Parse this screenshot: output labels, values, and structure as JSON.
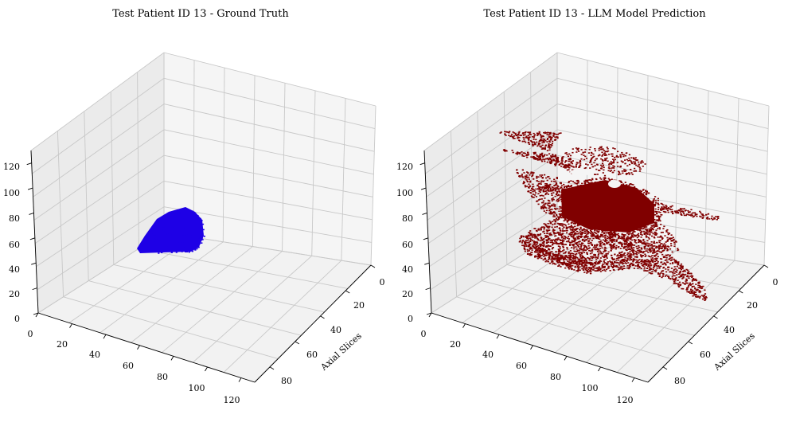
{
  "chart_data": [
    {
      "type": "scatter",
      "subtype": "3d-voxel",
      "title": "Test Patient ID 13 - Ground Truth",
      "xlabel": "",
      "ylabel": "Axial Slices",
      "zlabel": "",
      "x_ticks": [
        "0",
        "20",
        "40",
        "60",
        "80",
        "100",
        "120"
      ],
      "y_ticks": [
        "0",
        "20",
        "40",
        "60",
        "80"
      ],
      "z_ticks": [
        "0",
        "20",
        "40",
        "60",
        "80",
        "100",
        "120"
      ],
      "xlim": [
        0,
        128
      ],
      "ylim": [
        0,
        90
      ],
      "zlim": [
        0,
        128
      ],
      "grid": true,
      "color": "#1e00e6",
      "region_summary": "compact blob near the origin floor, roughly x 5-45, y 10-30, z 0-55"
    },
    {
      "type": "scatter",
      "subtype": "3d-voxel",
      "title": "Test Patient ID 13 - LLM Model Prediction",
      "xlabel": "",
      "ylabel": "Axial Slices",
      "zlabel": "",
      "x_ticks": [
        "0",
        "20",
        "40",
        "60",
        "80",
        "100",
        "120"
      ],
      "y_ticks": [
        "0",
        "20",
        "40",
        "60",
        "80"
      ],
      "z_ticks": [
        "0",
        "20",
        "40",
        "60",
        "80",
        "100",
        "120"
      ],
      "xlim": [
        0,
        128
      ],
      "ylim": [
        0,
        90
      ],
      "zlim": [
        0,
        128
      ],
      "grid": true,
      "color": "#800000",
      "region_summary": "large irregular sheet-like regions spanning most of the volume"
    }
  ]
}
